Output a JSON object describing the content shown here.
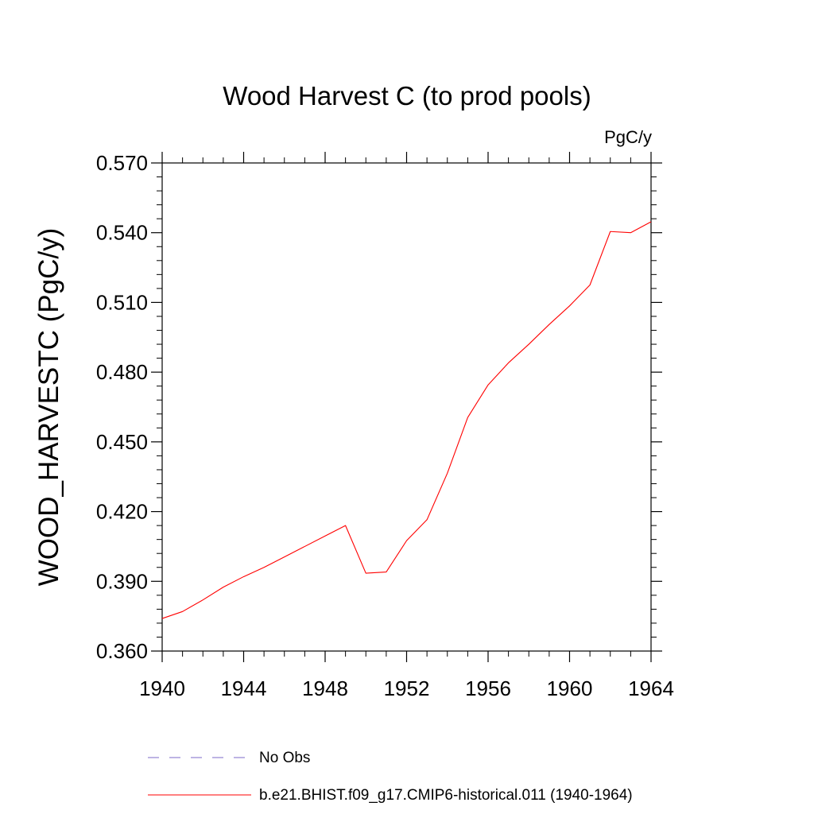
{
  "chart_data": {
    "type": "line",
    "title": "Wood Harvest C (to prod pools)",
    "units": "PgC/y",
    "ylabel": "WOOD_HARVESTC  (PgC/y)",
    "xlabel": "",
    "xlim": [
      1940,
      1964
    ],
    "ylim": [
      0.36,
      0.57
    ],
    "x_ticks": [
      1940,
      1944,
      1948,
      1952,
      1956,
      1960,
      1964
    ],
    "y_ticks": [
      "0.360",
      "0.390",
      "0.420",
      "0.450",
      "0.480",
      "0.510",
      "0.540",
      "0.570"
    ],
    "x": [
      1940,
      1941,
      1942,
      1943,
      1944,
      1945,
      1946,
      1947,
      1948,
      1949,
      1950,
      1951,
      1952,
      1953,
      1954,
      1955,
      1956,
      1957,
      1958,
      1959,
      1960,
      1961,
      1962,
      1963,
      1964
    ],
    "series": [
      {
        "name": "b.e21.BHIST.f09_g17.CMIP6-historical.011 (1940-1964)",
        "color": "#ff0000",
        "values": [
          0.374,
          0.377,
          0.382,
          0.3875,
          0.392,
          0.396,
          0.4005,
          0.405,
          0.4095,
          0.414,
          0.3935,
          0.394,
          0.4075,
          0.4165,
          0.4365,
          0.4605,
          0.4745,
          0.484,
          0.492,
          0.5005,
          0.5085,
          0.5175,
          0.5405,
          0.54,
          0.5447
        ]
      }
    ],
    "legend": [
      {
        "label": "No Obs",
        "color": "#7b68c8",
        "style": "dashed"
      },
      {
        "label": "b.e21.BHIST.f09_g17.CMIP6-historical.011 (1940-1964)",
        "color": "#ff0000",
        "style": "solid"
      }
    ],
    "legend_position": "bottom",
    "grid": false
  }
}
